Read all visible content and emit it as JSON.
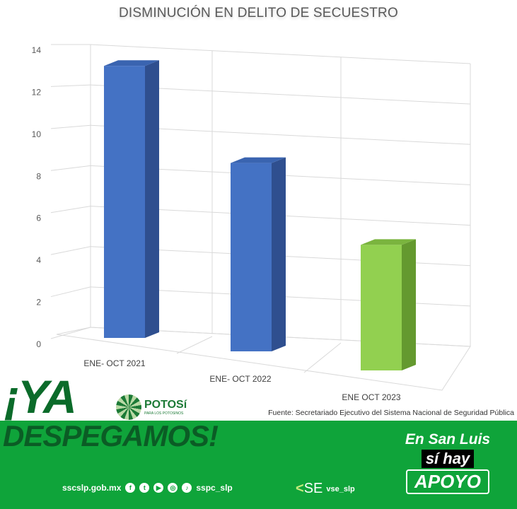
{
  "chart_data": {
    "type": "bar",
    "title": "DISMINUCIÓN EN DELITO DE SECUESTRO",
    "categories": [
      "ENE- OCT 2021",
      "ENE- OCT 2022",
      "ENE OCT 2023"
    ],
    "values": [
      13,
      9,
      6
    ],
    "bar_colors": [
      "#4472c4",
      "#4472c4",
      "#92d050"
    ],
    "yticks": [
      0,
      2,
      4,
      6,
      8,
      10,
      12,
      14
    ],
    "ylim": [
      0,
      14
    ],
    "xlabel": "",
    "ylabel": "",
    "grid": true,
    "style": "3d-column"
  },
  "source": "Fuente: Secretariado Ejecutivo del Sistema Nacional de Seguridad Pública",
  "banner": {
    "headline_1": "¡YA",
    "headline_2": "DESPEGAMOS!",
    "logo_name": "POTOSí",
    "logo_sub": "PARA LOS POTOSINOS",
    "website": "sscslp.gob.mx",
    "social_icons": [
      "facebook-icon",
      "twitter-icon",
      "youtube-icon",
      "instagram-icon",
      "tiktok-icon"
    ],
    "social_handle": "sspc_slp",
    "se_logo": "SE",
    "se_handle": "vse_slp",
    "slogan_1": "En San Luis",
    "slogan_2": "sí hay",
    "slogan_3": "APOYO",
    "band_color": "#0fa43a"
  }
}
